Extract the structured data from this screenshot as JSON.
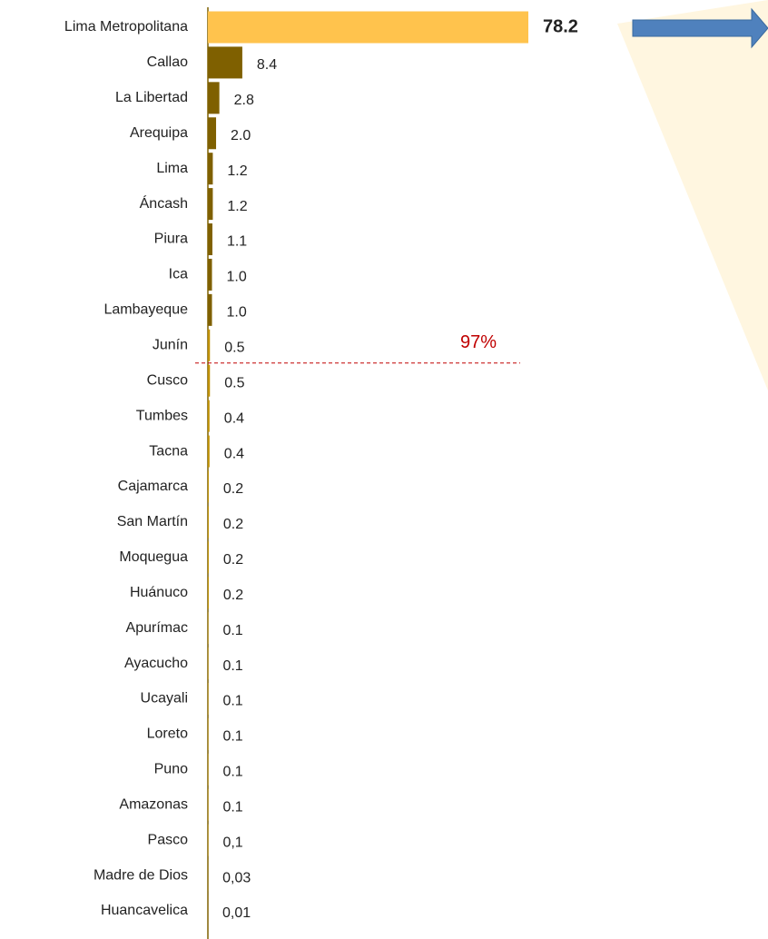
{
  "chart_data": {
    "type": "hbar",
    "categories": [
      "Lima Metropolitana",
      "Callao",
      "La Libertad",
      "Arequipa",
      "Lima",
      "Áncash",
      "Piura",
      "Ica",
      "Lambayeque",
      "Junín",
      "Cusco",
      "Tumbes",
      "Tacna",
      "Cajamarca",
      "San Martín",
      "Moquegua",
      "Huánuco",
      "Apurímac",
      "Ayacucho",
      "Ucayali",
      "Loreto",
      "Puno",
      "Amazonas",
      "Pasco",
      "Madre de Dios",
      "Huancavelica"
    ],
    "values": [
      78.2,
      8.4,
      2.8,
      2.0,
      1.2,
      1.2,
      1.1,
      1.0,
      1.0,
      0.5,
      0.5,
      0.4,
      0.4,
      0.2,
      0.2,
      0.2,
      0.2,
      0.1,
      0.1,
      0.1,
      0.1,
      0.1,
      0.1,
      0.1,
      0.03,
      0.01
    ],
    "value_labels": [
      "78.2",
      "8.4",
      "2.8",
      "2.0",
      "1.2",
      "1.2",
      "1.1",
      "1.0",
      "1.0",
      "0.5",
      "0.5",
      "0.4",
      "0.4",
      "0.2",
      "0.2",
      "0.2",
      "0.2",
      "0.1",
      "0.1",
      "0.1",
      "0.1",
      "0.1",
      "0.1",
      "0,1",
      "0,03",
      "0,01"
    ],
    "colors": [
      "#ffc34d",
      "#7f6000",
      "#7f6000",
      "#7f6000",
      "#7f6000",
      "#7f6000",
      "#7f6000",
      "#7f6000",
      "#7f6000",
      "#bf9000",
      "#bf9000",
      "#bf9000",
      "#bf9000",
      "#bf9000",
      "#bf9000",
      "#bf9000",
      "#bf9000",
      "#bf9000",
      "#bf9000",
      "#bf9000",
      "#bf9000",
      "#bf9000",
      "#bf9000",
      "#bf9000",
      "#bf9000",
      "#bf9000"
    ],
    "annotation": "97%",
    "annotation_color": "#c00000"
  }
}
